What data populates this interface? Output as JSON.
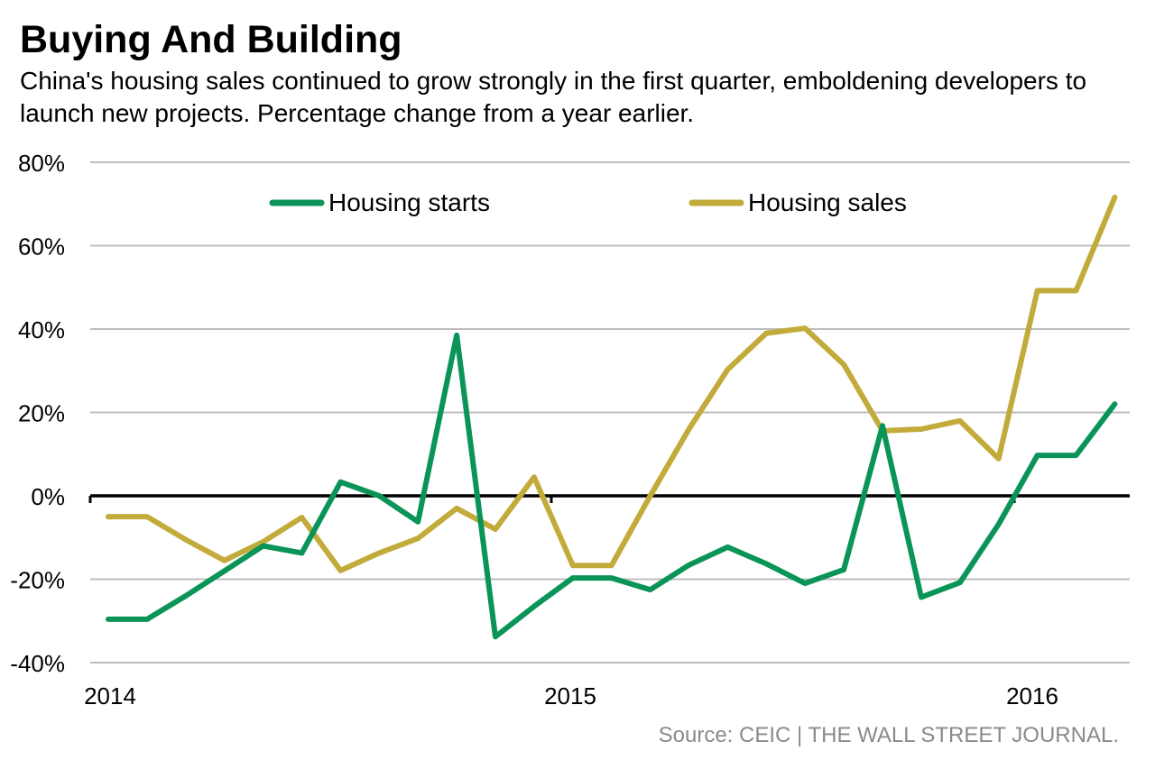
{
  "header": {
    "title": "Buying And Building",
    "subtitle": "China's housing sales continued to grow strongly in the first quarter, emboldening developers to launch new projects. Percentage change from a year earlier."
  },
  "footer": {
    "source": "Source: CEIC  |  THE WALL STREET JOURNAL."
  },
  "chart_data": {
    "type": "line",
    "title": "Buying And Building",
    "ylim": [
      -40,
      80
    ],
    "yticks": [
      80,
      60,
      40,
      20,
      0,
      -20,
      -40
    ],
    "ytick_labels": [
      "80%",
      "60%",
      "40%",
      "20%",
      "0%",
      "-20%",
      "-40%"
    ],
    "xtick_labels": [
      "2014",
      "2015",
      "2016"
    ],
    "grid": true,
    "legend_position": "top",
    "colors": {
      "Housing starts": "#0a9457",
      "Housing sales": "#c2ab3a",
      "grid": "#bdbdbd",
      "axis": "#000000"
    },
    "x": [
      "2014-01",
      "2014-02",
      "2014-03",
      "2014-04",
      "2014-05",
      "2014-06",
      "2014-07",
      "2014-08",
      "2014-09",
      "2014-10",
      "2014-11",
      "2014-12",
      "2015-01",
      "2015-02",
      "2015-03",
      "2015-04",
      "2015-05",
      "2015-06",
      "2015-07",
      "2015-08",
      "2015-09",
      "2015-10",
      "2015-11",
      "2015-12",
      "2016-01",
      "2016-02",
      "2016-03"
    ],
    "series": [
      {
        "name": "Housing starts",
        "values": [
          -29.6,
          -29.6,
          -24,
          -18,
          -12,
          -13.7,
          3.3,
          0,
          -6.2,
          38.5,
          -33.8,
          -26.5,
          -19.7,
          -19.7,
          -22.5,
          -16.6,
          -12.3,
          -16.3,
          -21,
          -17.7,
          16.8,
          -24.3,
          -20.8,
          -6.8,
          9.7,
          9.7,
          22
        ]
      },
      {
        "name": "Housing sales",
        "values": [
          -5,
          -5,
          -10.5,
          -15.5,
          -11,
          -5.2,
          -17.9,
          -13.7,
          -10.2,
          -3,
          -8,
          4.5,
          -16.7,
          -16.7,
          0,
          16,
          30.3,
          39,
          40.2,
          31.5,
          15.6,
          16,
          18,
          8.9,
          49.2,
          49.2,
          71.6
        ]
      }
    ]
  }
}
